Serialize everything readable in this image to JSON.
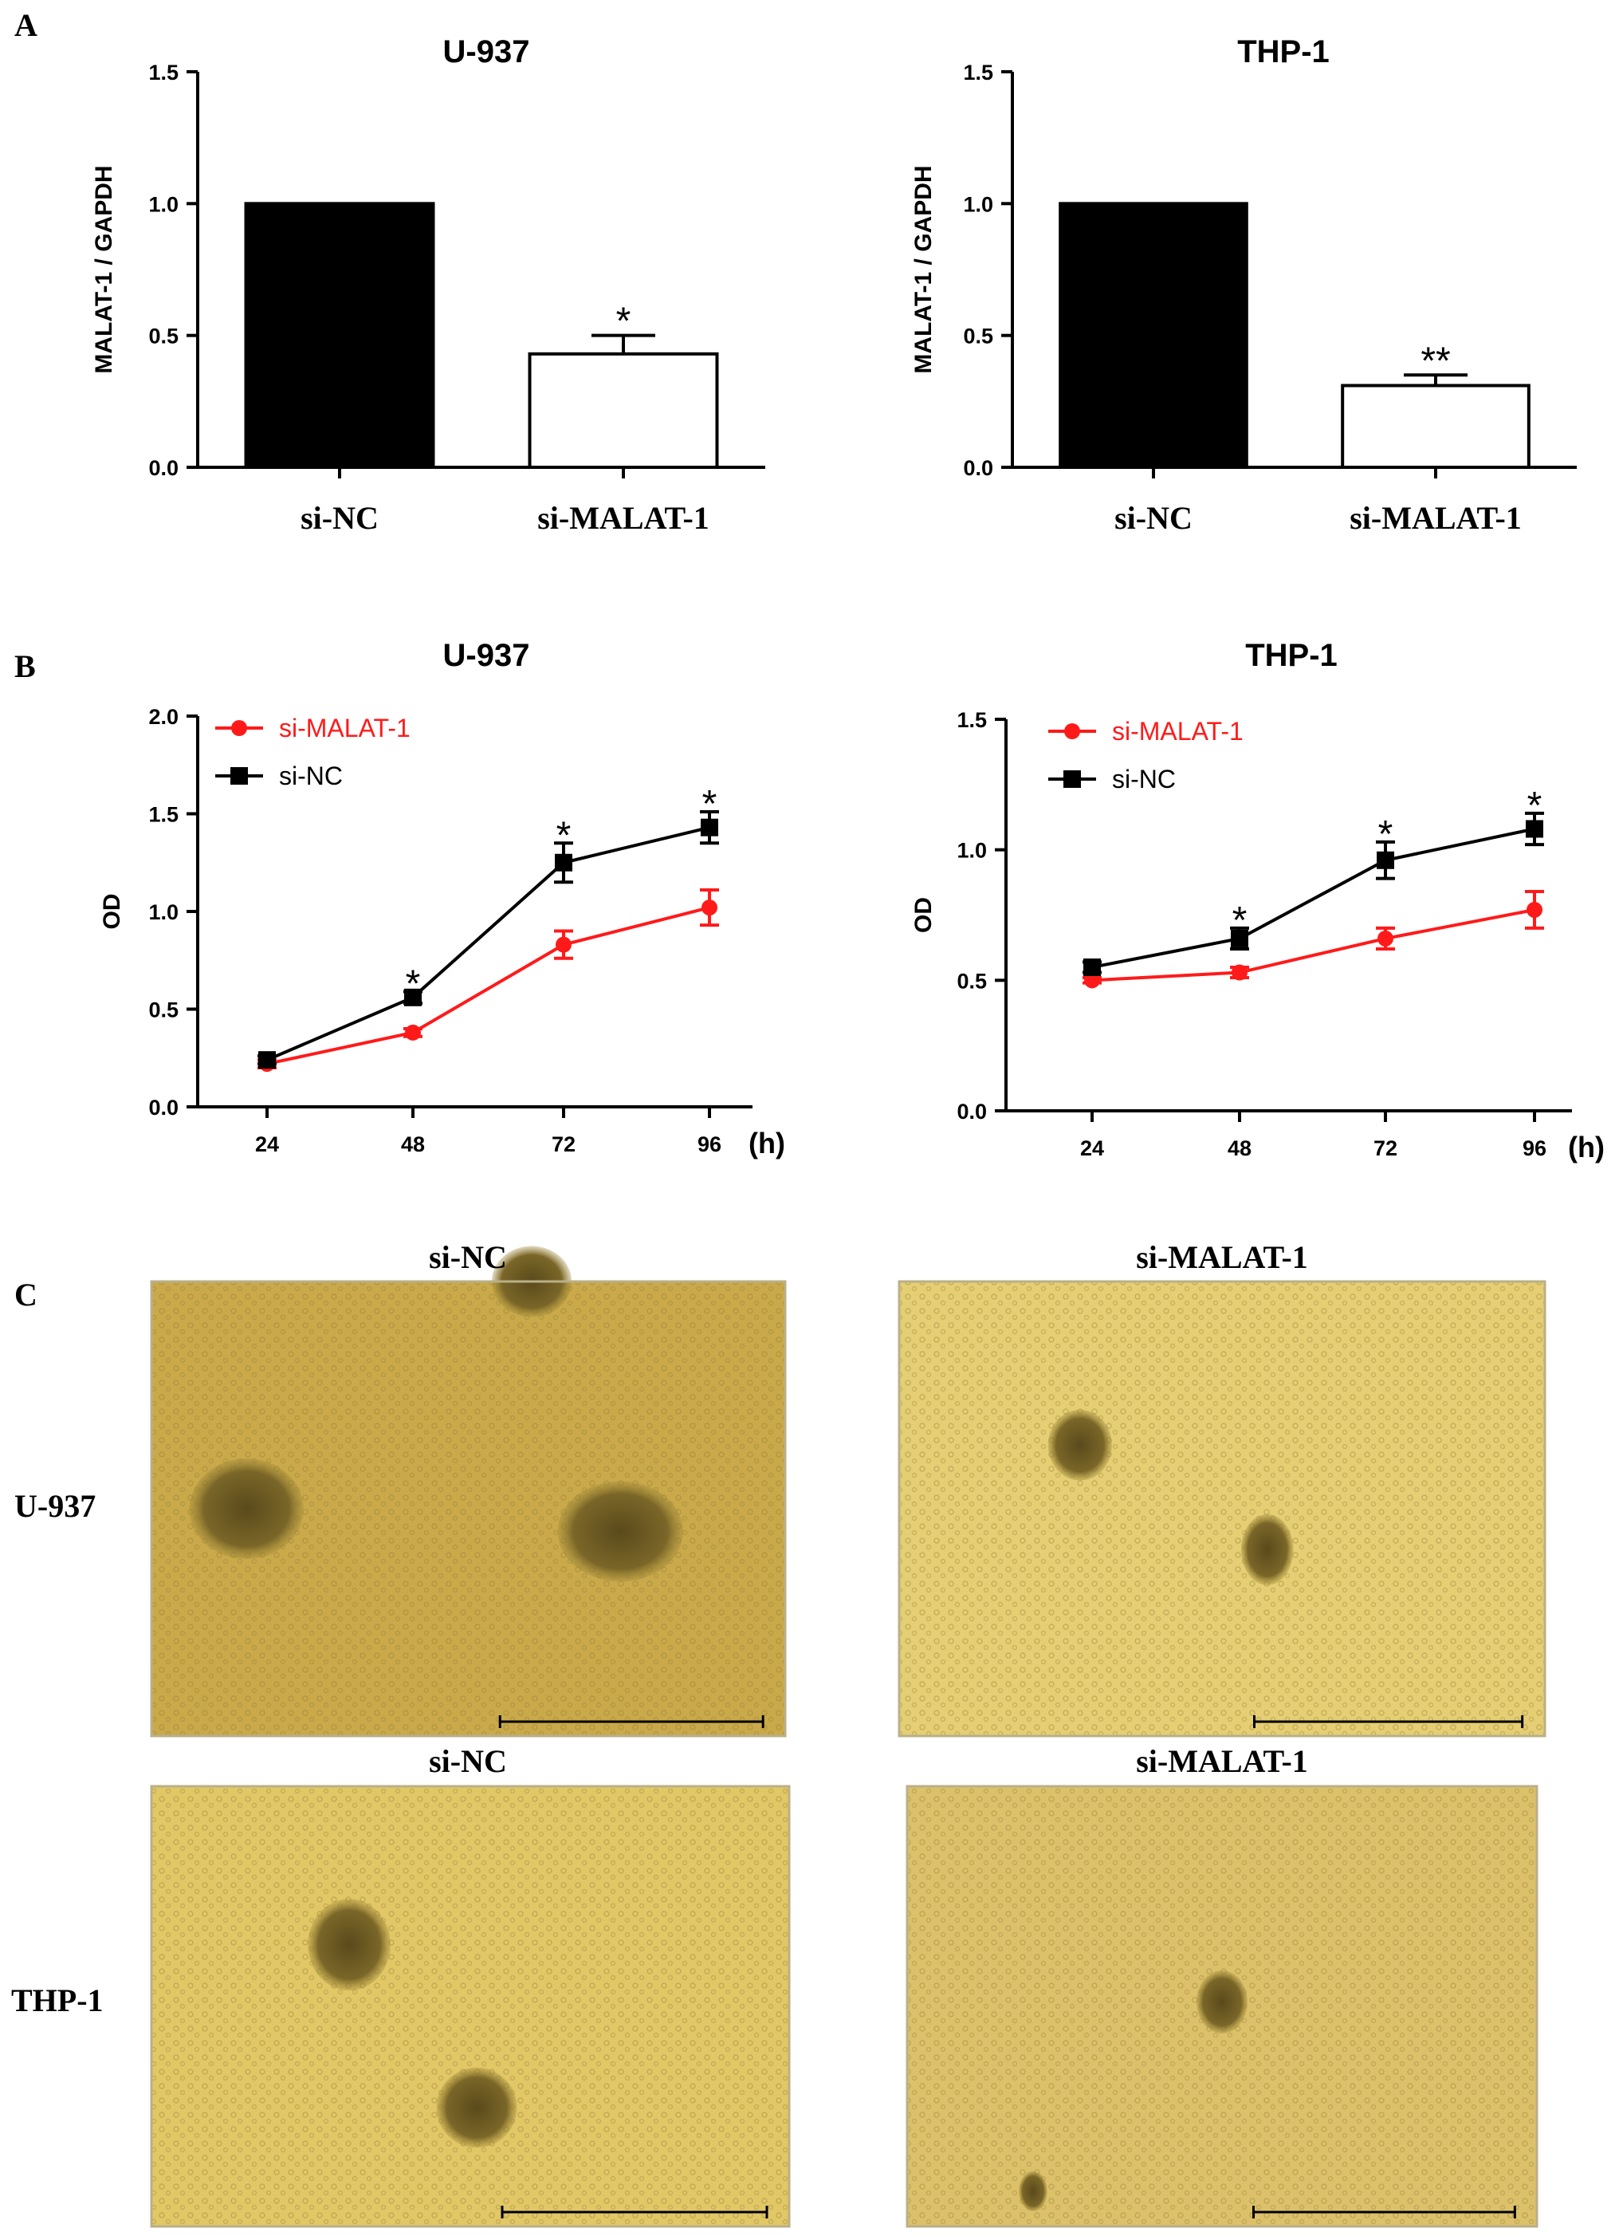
{
  "panels": {
    "a": "A",
    "b": "B",
    "c": "C"
  },
  "colors": {
    "black": "#000000",
    "red": "#ff1a1a",
    "micro_bg": "#dcc25e"
  },
  "chart_data": [
    {
      "type": "bar",
      "panel": "A",
      "title": "U-937",
      "ylabel": "MALAT-1 / GAPDH",
      "ylim": [
        0,
        1.5
      ],
      "yticks": [
        "0.0",
        "0.5",
        "1.0",
        "1.5"
      ],
      "categories": [
        "si-NC",
        "si-MALAT-1"
      ],
      "values": [
        1.0,
        0.43
      ],
      "errors": [
        0,
        0.07
      ],
      "fills": [
        "#000000",
        "#ffffff"
      ],
      "significance": [
        "",
        "*"
      ]
    },
    {
      "type": "bar",
      "panel": "A",
      "title": "THP-1",
      "ylabel": "MALAT-1 / GAPDH",
      "ylim": [
        0,
        1.5
      ],
      "yticks": [
        "0.0",
        "0.5",
        "1.0",
        "1.5"
      ],
      "categories": [
        "si-NC",
        "si-MALAT-1"
      ],
      "values": [
        1.0,
        0.31
      ],
      "errors": [
        0,
        0.04
      ],
      "fills": [
        "#000000",
        "#ffffff"
      ],
      "significance": [
        "",
        "**"
      ]
    },
    {
      "type": "line",
      "panel": "B",
      "title": "U-937",
      "ylabel": "OD",
      "xunit": "(h)",
      "ylim": [
        0,
        2.0
      ],
      "yticks": [
        "0.0",
        "0.5",
        "1.0",
        "1.5",
        "2.0"
      ],
      "x": [
        "24",
        "48",
        "72",
        "96"
      ],
      "legend_position": "top-left",
      "series": [
        {
          "name": "si-MALAT-1",
          "color": "#ff1a1a",
          "marker": "circle",
          "values": [
            0.22,
            0.38,
            0.83,
            1.02
          ],
          "errors": [
            0.02,
            0.02,
            0.07,
            0.09
          ]
        },
        {
          "name": "si-NC",
          "color": "#000000",
          "marker": "square",
          "values": [
            0.24,
            0.56,
            1.25,
            1.43
          ],
          "errors": [
            0.02,
            0.03,
            0.1,
            0.08
          ]
        }
      ],
      "significance": [
        "",
        "*",
        "*",
        "*"
      ]
    },
    {
      "type": "line",
      "panel": "B",
      "title": "THP-1",
      "ylabel": "OD",
      "xunit": "(h)",
      "ylim": [
        0,
        1.5
      ],
      "yticks": [
        "0.0",
        "0.5",
        "1.0",
        "1.5"
      ],
      "x": [
        "24",
        "48",
        "72",
        "96"
      ],
      "legend_position": "top-left",
      "series": [
        {
          "name": "si-MALAT-1",
          "color": "#ff1a1a",
          "marker": "circle",
          "values": [
            0.5,
            0.53,
            0.66,
            0.77
          ],
          "errors": [
            0.01,
            0.02,
            0.04,
            0.07
          ]
        },
        {
          "name": "si-NC",
          "color": "#000000",
          "marker": "square",
          "values": [
            0.55,
            0.66,
            0.96,
            1.08
          ],
          "errors": [
            0.02,
            0.04,
            0.07,
            0.06
          ]
        }
      ],
      "significance": [
        "",
        "*",
        "*",
        "*"
      ]
    }
  ],
  "micrographs": {
    "column_labels": [
      "si-NC",
      "si-MALAT-1"
    ],
    "row_labels": [
      "U-937",
      "THP-1"
    ],
    "images": [
      {
        "name": "u937-si-nc",
        "tone": "#c9a94a",
        "colonies": [
          [
            0.6,
            0.0,
            0.7,
            0.6
          ],
          [
            0.15,
            0.5,
            1.0,
            0.85
          ],
          [
            0.74,
            0.55,
            1.1,
            0.85
          ]
        ]
      },
      {
        "name": "u937-si-malat-1",
        "tone": "#e5ce73",
        "colonies": [
          [
            0.28,
            0.36,
            0.55,
            0.6
          ],
          [
            0.57,
            0.59,
            0.45,
            0.6
          ]
        ]
      },
      {
        "name": "thp1-si-nc",
        "tone": "#e2c766",
        "colonies": [
          [
            0.31,
            0.36,
            0.72,
            0.8
          ],
          [
            0.51,
            0.73,
            0.7,
            0.7
          ]
        ]
      },
      {
        "name": "thp1-si-malat-1",
        "tone": "#dcc16a",
        "colonies": [
          [
            0.5,
            0.49,
            0.45,
            0.55
          ],
          [
            0.2,
            0.92,
            0.25,
            0.35
          ]
        ]
      }
    ]
  }
}
